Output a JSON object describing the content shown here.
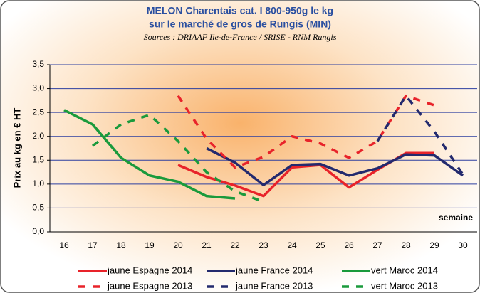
{
  "chart_data": {
    "type": "line",
    "title": "MELON Charentais cat. I 800-950g le kg",
    "subtitle": "sur le marché de gros de Rungis (MIN)",
    "source": "Sources : DRIAAF Ile-de-France / SRISE - RNM Rungis",
    "y_label": "Prix au kg en € HT",
    "x_label": "semaine",
    "categories": [
      "16",
      "17",
      "18",
      "19",
      "20",
      "21",
      "22",
      "23",
      "24",
      "25",
      "26",
      "27",
      "28",
      "29",
      "30"
    ],
    "ylim": [
      0,
      3.5
    ],
    "yticks": [
      {
        "value": 0,
        "label": "0,0"
      },
      {
        "value": 0.5,
        "label": "0,5"
      },
      {
        "value": 1,
        "label": "1,0"
      },
      {
        "value": 1.5,
        "label": "1,5"
      },
      {
        "value": 2,
        "label": "2,0"
      },
      {
        "value": 2.5,
        "label": "2,5"
      },
      {
        "value": 3,
        "label": "3,0"
      },
      {
        "value": 3.5,
        "label": "3,5"
      }
    ],
    "grid": true,
    "series": [
      {
        "name": "jaune Espagne 2014",
        "color": "#e8232a",
        "dashed": false,
        "values": [
          null,
          null,
          null,
          null,
          1.4,
          1.15,
          0.97,
          0.75,
          1.35,
          1.4,
          0.93,
          1.3,
          1.65,
          1.65,
          null
        ]
      },
      {
        "name": "jaune France 2014",
        "color": "#232a6e",
        "dashed": false,
        "values": [
          null,
          null,
          null,
          null,
          null,
          1.75,
          1.45,
          0.98,
          1.4,
          1.42,
          1.18,
          1.33,
          1.62,
          1.6,
          1.18
        ]
      },
      {
        "name": "vert Maroc 2014",
        "color": "#1a9a3c",
        "dashed": false,
        "values": [
          2.55,
          2.25,
          1.55,
          1.18,
          1.05,
          0.75,
          0.7,
          null,
          null,
          null,
          null,
          null,
          null,
          null,
          null
        ]
      },
      {
        "name": "jaune Espagne 2013",
        "color": "#e8232a",
        "dashed": true,
        "values": [
          null,
          null,
          null,
          null,
          2.85,
          1.95,
          1.35,
          1.57,
          2.0,
          1.85,
          1.55,
          1.9,
          2.85,
          2.65,
          null
        ]
      },
      {
        "name": "jaune France 2013",
        "color": "#232a6e",
        "dashed": true,
        "values": [
          null,
          null,
          null,
          null,
          null,
          null,
          null,
          null,
          null,
          null,
          null,
          1.9,
          2.85,
          2.1,
          1.2
        ]
      },
      {
        "name": "vert Maroc 2013",
        "color": "#1a9a3c",
        "dashed": true,
        "values": [
          null,
          1.8,
          2.25,
          2.45,
          1.9,
          1.25,
          0.85,
          0.63,
          null,
          null,
          null,
          null,
          null,
          null,
          null
        ]
      }
    ]
  }
}
